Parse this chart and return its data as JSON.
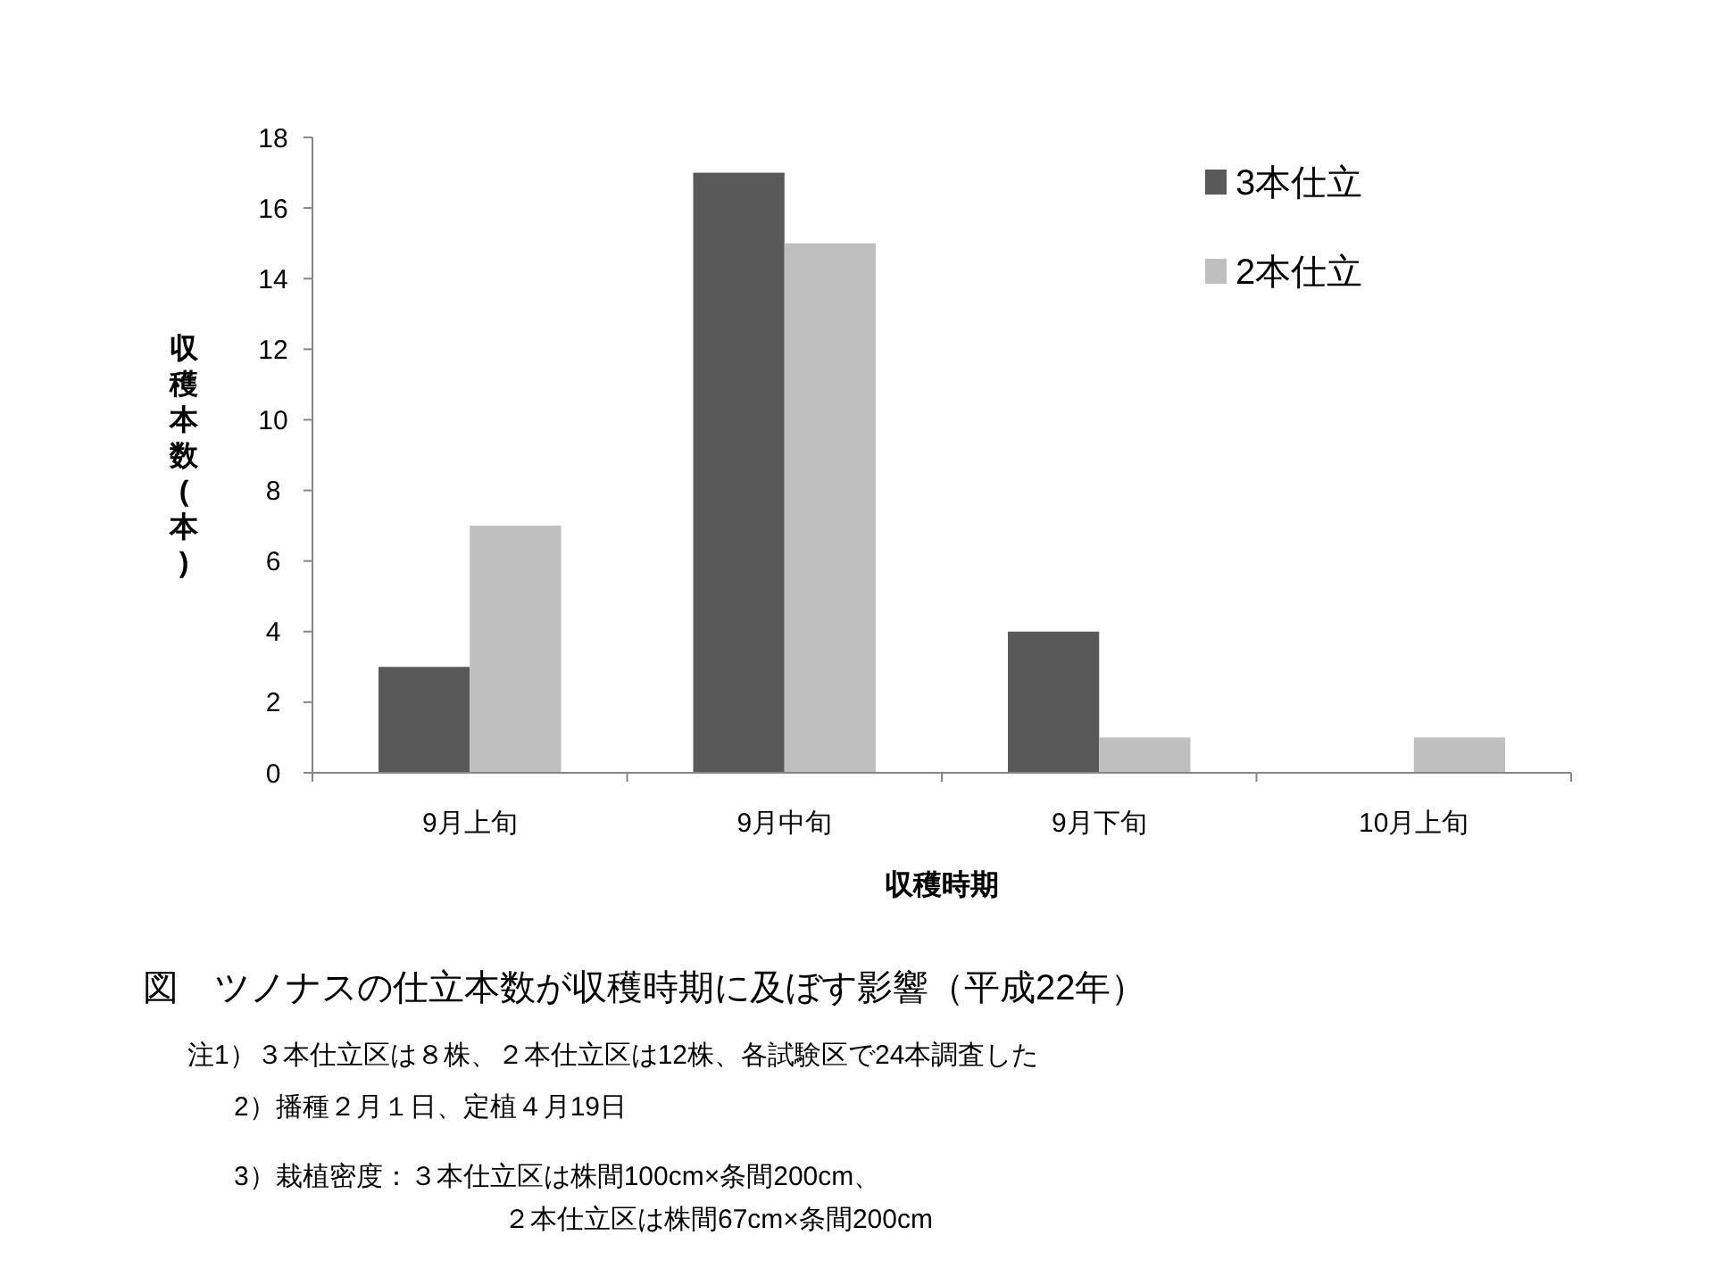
{
  "chart_data": {
    "type": "bar",
    "title": "図　ツノナスの仕立本数が収穫時期に及ぼす影響（平成22年）",
    "xlabel": "収穫時期",
    "ylabel": "収穫本数(本)",
    "categories": [
      "9月上旬",
      "9月中旬",
      "9月下旬",
      "10月上旬"
    ],
    "series": [
      {
        "name": "3本仕立",
        "color": "#595959",
        "values": [
          3,
          17,
          4,
          0
        ]
      },
      {
        "name": "2本仕立",
        "color": "#bfbfbf",
        "values": [
          7,
          15,
          1,
          1
        ]
      }
    ],
    "ylim": [
      0,
      18
    ],
    "yticks": [
      0,
      2,
      4,
      6,
      8,
      10,
      12,
      14,
      16,
      18
    ],
    "grid": false,
    "legend": "top right",
    "annotations": [
      "注1）３本仕立区は８株、２本仕立区は12株、各試験区で24本調査した",
      "2）播種２月１日、定植４月19日",
      "3）栽植密度：３本仕立区は株間100cm×条間200cm、",
      "２本仕立区は株間67cm×条間200cm"
    ]
  }
}
